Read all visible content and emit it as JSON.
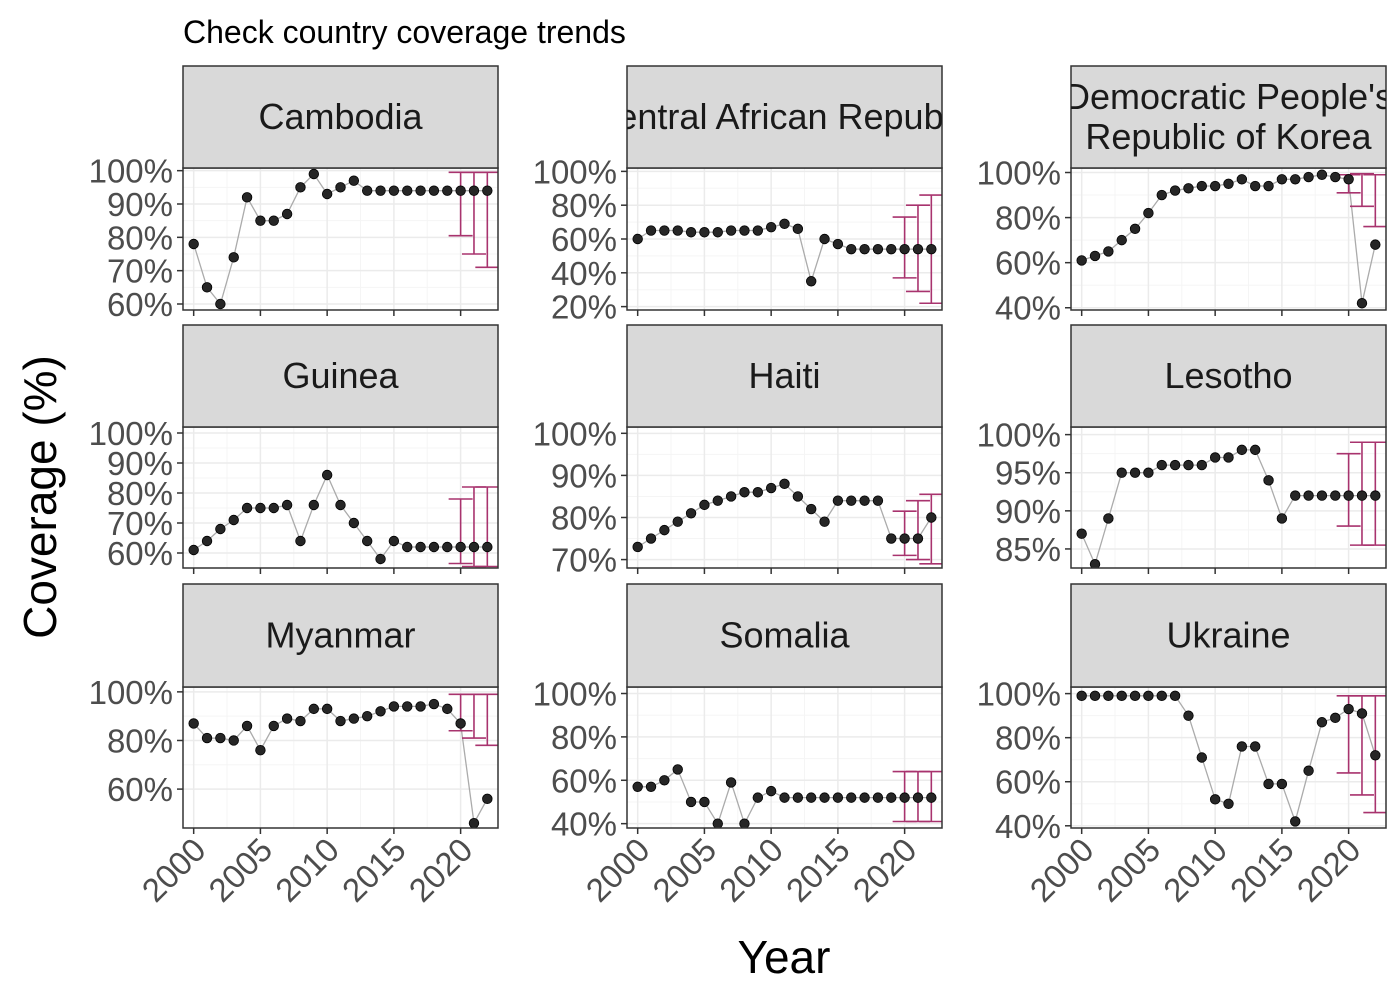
{
  "chart_data": {
    "type": "scatter",
    "title": "Check country coverage trends",
    "xlabel": "Year",
    "ylabel": "Coverage (%)",
    "x_ticks": [
      "2000",
      "2005",
      "2010",
      "2015",
      "2020"
    ],
    "x_range": [
      1999.2,
      2022.8
    ],
    "grid": true,
    "colors": {
      "point": "#262626",
      "line": "#ababab",
      "error_bar": "#a8336e",
      "strip_fill": "#d9d9d9",
      "panel_border": "#333333",
      "grid_major": "#ebebeb",
      "grid_minor": "#f5f5f5"
    },
    "panels": [
      {
        "name": "Cambodia",
        "name_lines": [
          "Cambodia"
        ],
        "y_ticks": [
          "60%",
          "70%",
          "80%",
          "90%",
          "100%"
        ],
        "y_tick_values": [
          60,
          70,
          80,
          90,
          100
        ],
        "ylim": [
          58.2,
          100.8
        ],
        "x": [
          2000,
          2001,
          2002,
          2003,
          2004,
          2005,
          2006,
          2007,
          2008,
          2009,
          2010,
          2011,
          2012,
          2013,
          2014,
          2015,
          2016,
          2017,
          2018,
          2019,
          2020,
          2021,
          2022
        ],
        "y": [
          78,
          65,
          60,
          74,
          92,
          85,
          85,
          87,
          95,
          99,
          93,
          95,
          97,
          94,
          94,
          94,
          94,
          94,
          94,
          94,
          94,
          94,
          94
        ],
        "error_bars": [
          {
            "x": 2020,
            "lo": 80.5,
            "hi": 99.5
          },
          {
            "x": 2021,
            "lo": 75,
            "hi": 99.5
          },
          {
            "x": 2022,
            "lo": 71,
            "hi": 99.5
          }
        ]
      },
      {
        "name": "Central African Republic",
        "name_lines": [
          "Central African Republic"
        ],
        "y_ticks": [
          "20%",
          "40%",
          "60%",
          "80%",
          "100%"
        ],
        "y_tick_values": [
          20,
          40,
          60,
          80,
          100
        ],
        "ylim": [
          18,
          102
        ],
        "x": [
          2000,
          2001,
          2002,
          2003,
          2004,
          2005,
          2006,
          2007,
          2008,
          2009,
          2010,
          2011,
          2012,
          2013,
          2014,
          2015,
          2016,
          2017,
          2018,
          2019,
          2020,
          2021,
          2022
        ],
        "y": [
          60,
          65,
          65,
          65,
          64,
          64,
          64,
          65,
          65,
          65,
          67,
          69,
          66,
          35,
          60,
          57,
          54,
          54,
          54,
          54,
          54,
          54,
          54
        ],
        "error_bars": [
          {
            "x": 2020,
            "lo": 37,
            "hi": 73
          },
          {
            "x": 2021,
            "lo": 29,
            "hi": 80
          },
          {
            "x": 2022,
            "lo": 22,
            "hi": 86
          }
        ]
      },
      {
        "name": "Democratic People's Republic of Korea",
        "name_lines": [
          "Democratic People's",
          "Republic of Korea"
        ],
        "y_ticks": [
          "40%",
          "60%",
          "80%",
          "100%"
        ],
        "y_tick_values": [
          40,
          60,
          80,
          100
        ],
        "ylim": [
          39,
          102
        ],
        "x": [
          2000,
          2001,
          2002,
          2003,
          2004,
          2005,
          2006,
          2007,
          2008,
          2009,
          2010,
          2011,
          2012,
          2013,
          2014,
          2015,
          2016,
          2017,
          2018,
          2019,
          2020,
          2021,
          2022
        ],
        "y": [
          61,
          63,
          65,
          70,
          75,
          82,
          90,
          92,
          93,
          94,
          94,
          95,
          97,
          94,
          94,
          97,
          97,
          98,
          99,
          98,
          97,
          42,
          68
        ],
        "error_bars": [
          {
            "x": 2020,
            "lo": 91,
            "hi": 99
          },
          {
            "x": 2021,
            "lo": 85,
            "hi": 99.5
          },
          {
            "x": 2022,
            "lo": 76,
            "hi": 99
          }
        ]
      },
      {
        "name": "Guinea",
        "name_lines": [
          "Guinea"
        ],
        "y_ticks": [
          "60%",
          "70%",
          "80%",
          "90%",
          "100%"
        ],
        "y_tick_values": [
          60,
          70,
          80,
          90,
          100
        ],
        "ylim": [
          55,
          102
        ],
        "x": [
          2000,
          2001,
          2002,
          2003,
          2004,
          2005,
          2006,
          2007,
          2008,
          2009,
          2010,
          2011,
          2012,
          2013,
          2014,
          2015,
          2016,
          2017,
          2018,
          2019,
          2020,
          2021,
          2022
        ],
        "y": [
          61,
          64,
          68,
          71,
          75,
          75,
          75,
          76,
          64,
          76,
          86,
          76,
          70,
          64,
          58,
          64,
          62,
          62,
          62,
          62,
          62,
          62,
          62
        ],
        "error_bars": [
          {
            "x": 2020,
            "lo": 56.5,
            "hi": 78
          },
          {
            "x": 2021,
            "lo": 55.5,
            "hi": 82
          },
          {
            "x": 2022,
            "lo": 55.5,
            "hi": 82
          }
        ]
      },
      {
        "name": "Haiti",
        "name_lines": [
          "Haiti"
        ],
        "y_ticks": [
          "70%",
          "80%",
          "90%",
          "100%"
        ],
        "y_tick_values": [
          70,
          80,
          90,
          100
        ],
        "ylim": [
          68,
          101.5
        ],
        "x": [
          2000,
          2001,
          2002,
          2003,
          2004,
          2005,
          2006,
          2007,
          2008,
          2009,
          2010,
          2011,
          2012,
          2013,
          2014,
          2015,
          2016,
          2017,
          2018,
          2019,
          2020,
          2021,
          2022
        ],
        "y": [
          73,
          75,
          77,
          79,
          81,
          83,
          84,
          85,
          86,
          86,
          87,
          88,
          85,
          82,
          79,
          84,
          84,
          84,
          84,
          75,
          75,
          75,
          80
        ],
        "error_bars": [
          {
            "x": 2020,
            "lo": 71,
            "hi": 81.5
          },
          {
            "x": 2021,
            "lo": 70,
            "hi": 84
          },
          {
            "x": 2022,
            "lo": 69,
            "hi": 85.5
          }
        ]
      },
      {
        "name": "Lesotho",
        "name_lines": [
          "Lesotho"
        ],
        "y_ticks": [
          "85%",
          "90%",
          "95%",
          "100%"
        ],
        "y_tick_values": [
          85,
          90,
          95,
          100
        ],
        "ylim": [
          82.5,
          101
        ],
        "x": [
          2000,
          2001,
          2002,
          2003,
          2004,
          2005,
          2006,
          2007,
          2008,
          2009,
          2010,
          2011,
          2012,
          2013,
          2014,
          2015,
          2016,
          2017,
          2018,
          2019,
          2020,
          2021,
          2022
        ],
        "y": [
          87,
          83,
          89,
          95,
          95,
          95,
          96,
          96,
          96,
          96,
          97,
          97,
          98,
          98,
          94,
          89,
          92,
          92,
          92,
          92,
          92,
          92,
          92
        ],
        "error_bars": [
          {
            "x": 2020,
            "lo": 88,
            "hi": 97.5
          },
          {
            "x": 2021,
            "lo": 85.5,
            "hi": 99
          },
          {
            "x": 2022,
            "lo": 85.5,
            "hi": 99
          }
        ]
      },
      {
        "name": "Myanmar",
        "name_lines": [
          "Myanmar"
        ],
        "y_ticks": [
          "60%",
          "80%",
          "100%"
        ],
        "y_tick_values": [
          60,
          80,
          100
        ],
        "ylim": [
          44,
          102
        ],
        "x": [
          2000,
          2001,
          2002,
          2003,
          2004,
          2005,
          2006,
          2007,
          2008,
          2009,
          2010,
          2011,
          2012,
          2013,
          2014,
          2015,
          2016,
          2017,
          2018,
          2019,
          2020,
          2021,
          2022
        ],
        "y": [
          87,
          81,
          81,
          80,
          86,
          76,
          86,
          89,
          88,
          93,
          93,
          88,
          89,
          90,
          92,
          94,
          94,
          94,
          95,
          93,
          87,
          46,
          56
        ],
        "error_bars": [
          {
            "x": 2020,
            "lo": 84,
            "hi": 99
          },
          {
            "x": 2021,
            "lo": 81,
            "hi": 99
          },
          {
            "x": 2022,
            "lo": 78,
            "hi": 99
          }
        ]
      },
      {
        "name": "Somalia",
        "name_lines": [
          "Somalia"
        ],
        "y_ticks": [
          "40%",
          "60%",
          "80%",
          "100%"
        ],
        "y_tick_values": [
          40,
          60,
          80,
          100
        ],
        "ylim": [
          38,
          103
        ],
        "x": [
          2000,
          2001,
          2002,
          2003,
          2004,
          2005,
          2006,
          2007,
          2008,
          2009,
          2010,
          2011,
          2012,
          2013,
          2014,
          2015,
          2016,
          2017,
          2018,
          2019,
          2020,
          2021,
          2022
        ],
        "y": [
          57,
          57,
          60,
          65,
          50,
          50,
          40,
          59,
          40,
          52,
          55,
          52,
          52,
          52,
          52,
          52,
          52,
          52,
          52,
          52,
          52,
          52,
          52
        ],
        "error_bars": [
          {
            "x": 2020,
            "lo": 41,
            "hi": 64
          },
          {
            "x": 2021,
            "lo": 41,
            "hi": 64
          },
          {
            "x": 2022,
            "lo": 41,
            "hi": 64
          }
        ]
      },
      {
        "name": "Ukraine",
        "name_lines": [
          "Ukraine"
        ],
        "y_ticks": [
          "40%",
          "60%",
          "80%",
          "100%"
        ],
        "y_tick_values": [
          40,
          60,
          80,
          100
        ],
        "ylim": [
          39,
          103
        ],
        "x": [
          2000,
          2001,
          2002,
          2003,
          2004,
          2005,
          2006,
          2007,
          2008,
          2009,
          2010,
          2011,
          2012,
          2013,
          2014,
          2015,
          2016,
          2017,
          2018,
          2019,
          2020,
          2021,
          2022
        ],
        "y": [
          99,
          99,
          99,
          99,
          99,
          99,
          99,
          99,
          90,
          71,
          52,
          50,
          76,
          76,
          59,
          59,
          42,
          65,
          87,
          89,
          93,
          91,
          72
        ],
        "error_bars": [
          {
            "x": 2020,
            "lo": 64,
            "hi": 99
          },
          {
            "x": 2021,
            "lo": 54,
            "hi": 99
          },
          {
            "x": 2022,
            "lo": 46,
            "hi": 99
          }
        ]
      }
    ]
  }
}
